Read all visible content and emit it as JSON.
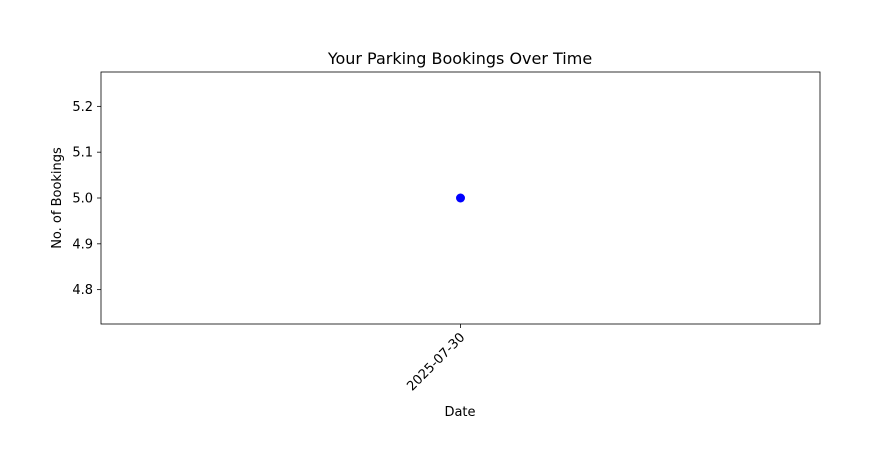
{
  "chart_data": {
    "type": "scatter",
    "title": "Your Parking Bookings Over Time",
    "xlabel": "Date",
    "ylabel": "No. of Bookings",
    "categories": [
      "2025-07-30"
    ],
    "series": [
      {
        "values": [
          5
        ],
        "color": "#0000ff"
      }
    ],
    "ylim": [
      4.725,
      5.275
    ],
    "yticks": [
      4.8,
      4.9,
      5.0,
      5.1,
      5.2
    ],
    "ytick_labels": [
      "4.8",
      "4.9",
      "5.0",
      "5.1",
      "5.2"
    ],
    "xtick_rotation_deg": 45,
    "grid": false,
    "legend": "none"
  }
}
